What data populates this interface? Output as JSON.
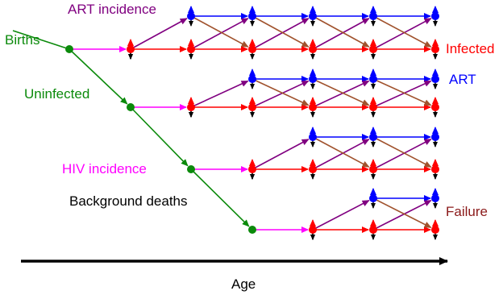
{
  "labels": {
    "births": "Births",
    "uninfected": "Uninfected",
    "hiv_incidence": "HIV incidence",
    "background_deaths": "Background deaths",
    "art_incidence": "ART incidence",
    "infected": "Infected",
    "art": "ART",
    "failure": "Failure",
    "age": "Age"
  },
  "colors": {
    "uninfected": "#0b8a0b",
    "hiv_incidence": "#ff00ff",
    "infected": "#ff0000",
    "art": "#0000ff",
    "art_incidence": "#800080",
    "failure": "#8b1a1a",
    "failure_arrow": "#a0522d",
    "deaths": "#000000",
    "age_axis": "#000000"
  }
}
